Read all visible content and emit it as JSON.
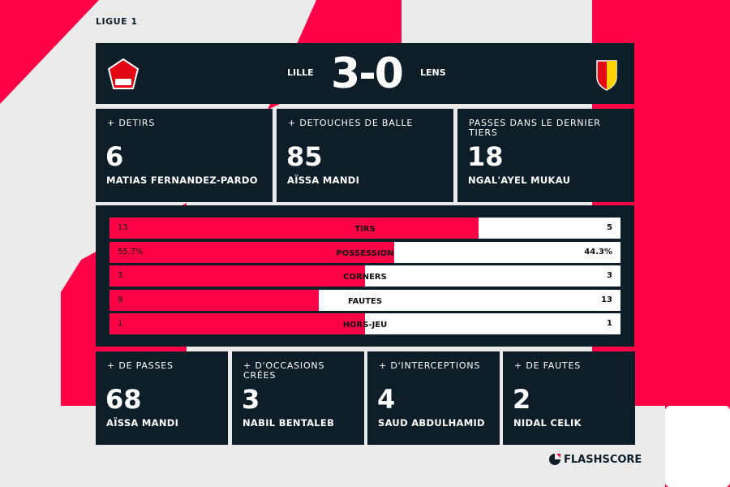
{
  "league": "LIGUE 1",
  "match": {
    "home": "LILLE",
    "away": "LENS",
    "score": "3-0",
    "home_logo": "losc-crest-icon",
    "away_logo": "rc-lens-crest-icon"
  },
  "top_cards": [
    {
      "label": "+ DETIRS",
      "value": "6",
      "player": "MATIAS FERNANDEZ-PARDO"
    },
    {
      "label": "+ DETOUCHES DE BALLE",
      "value": "85",
      "player": "AÏSSA MANDI"
    },
    {
      "label": "PASSES DANS LE DERNIER TIERS",
      "value": "18",
      "player": "NGAL'AYEL MUKAU"
    }
  ],
  "stats": [
    {
      "label": "TIRS",
      "home": "13",
      "away": "5",
      "home_share": 0.722
    },
    {
      "label": "POSSESSION",
      "home": "55.7%",
      "away": "44.3%",
      "home_share": 0.557
    },
    {
      "label": "CORNERS",
      "home": "3",
      "away": "3",
      "home_share": 0.5
    },
    {
      "label": "FAUTES",
      "home": "9",
      "away": "13",
      "home_share": 0.409
    },
    {
      "label": "HORS-JEU",
      "home": "1",
      "away": "1",
      "home_share": 0.5
    }
  ],
  "bottom_cards": [
    {
      "label": "+ DE PASSES",
      "value": "68",
      "player": "AÏSSA MANDI"
    },
    {
      "label": "+ D'OCCASIONS CRÉES",
      "value": "3",
      "player": "NABIL BENTALEB"
    },
    {
      "label": "+ D'INTERCEPTIONS",
      "value": "4",
      "player": "SAUD ABDULHAMID"
    },
    {
      "label": "+ DE FAUTES",
      "value": "2",
      "player": "NIDAL CELIK"
    }
  ],
  "brand": "FLASHSCORE",
  "colors": {
    "accent": "#ff0046",
    "panel": "#0e1e29",
    "background": "#ebebeb"
  }
}
